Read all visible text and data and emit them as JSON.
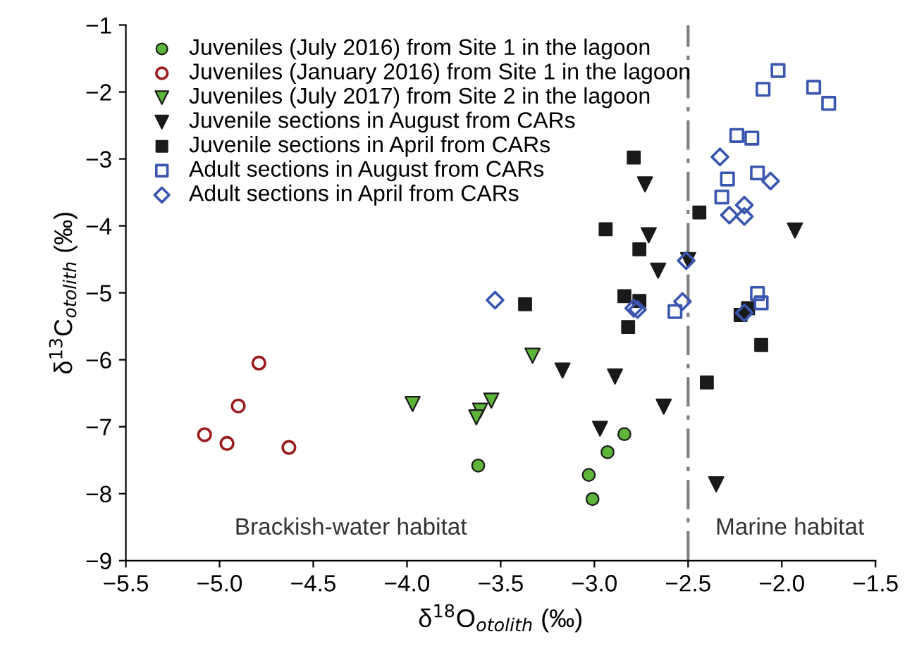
{
  "chart_data": {
    "type": "scatter",
    "xlabel": "δ$^{18}$O$_{otolith}$ (‰)",
    "ylabel": "δ$^{13}$C$_{otolith}$ (‰)",
    "xlim": [
      -5.5,
      -1.5
    ],
    "xticks": [
      {
        "value": -5.5,
        "label": "−5.5"
      },
      {
        "value": -5.0,
        "label": "−5.0"
      },
      {
        "value": -4.5,
        "label": "−4.5"
      },
      {
        "value": -4.0,
        "label": "−4.0"
      },
      {
        "value": -3.5,
        "label": "−3.5"
      },
      {
        "value": -3.0,
        "label": "−3.0"
      },
      {
        "value": -2.5,
        "label": "−2.5"
      },
      {
        "value": -2.0,
        "label": "−2.0"
      },
      {
        "value": -1.5,
        "label": "−1.5"
      }
    ],
    "ylim": [
      -9,
      -1
    ],
    "yticks": [
      {
        "value": -9,
        "label": "−9"
      },
      {
        "value": -8,
        "label": "−8"
      },
      {
        "value": -7,
        "label": "−7"
      },
      {
        "value": -6,
        "label": "−6"
      },
      {
        "value": -5,
        "label": "−5"
      },
      {
        "value": -4,
        "label": "−4"
      },
      {
        "value": -3,
        "label": "−3"
      },
      {
        "value": -2,
        "label": "−2"
      },
      {
        "value": -1,
        "label": "−1"
      }
    ],
    "grid": false,
    "legend": "top left",
    "ref_lines": [
      {
        "axis": "x",
        "value": -2.5,
        "color": "#808080",
        "line_style": "dashdot"
      }
    ],
    "annotations": [
      "Brackish-water habitat",
      "Marine habitat"
    ],
    "series": [
      {
        "name": "Juveniles (July 2016) from Site 1 in the lagoon",
        "color": "#5db53a",
        "marker": "circle",
        "x": [
          -3.62,
          -2.84,
          -2.93,
          -3.03,
          -3.01
        ],
        "values": [
          -7.58,
          -7.11,
          -7.38,
          -7.72,
          -8.08
        ]
      },
      {
        "name": "Juveniles (January 2016) from Site 1 in the lagoon",
        "color": "#9b1c1c",
        "marker": "circle-open",
        "x": [
          -5.08,
          -4.96,
          -4.9,
          -4.79,
          -4.63
        ],
        "values": [
          -7.12,
          -7.25,
          -6.69,
          -6.05,
          -7.31
        ]
      },
      {
        "name": "Juveniles (July 2017) from Site 2 in the lagoon",
        "color": "#5db53a",
        "marker": "triangle_down",
        "x": [
          -3.97,
          -3.55,
          -3.61,
          -3.63,
          -3.33
        ],
        "values": [
          -6.66,
          -6.61,
          -6.76,
          -6.86,
          -5.94
        ]
      },
      {
        "name": "Juvenile sections in August from CARs",
        "color": "#1a1a1a",
        "marker": "triangle_down",
        "x": [
          -2.73,
          -2.71,
          -2.66,
          -2.5,
          -1.93,
          -3.17,
          -2.89,
          -2.63,
          -2.97,
          -2.35
        ],
        "values": [
          -3.38,
          -4.14,
          -4.67,
          -4.51,
          -4.07,
          -6.16,
          -6.25,
          -6.7,
          -7.03,
          -7.86
        ]
      },
      {
        "name": "Juvenile sections in April from CARs",
        "color": "#1a1a1a",
        "marker": "square",
        "x": [
          -2.79,
          -2.44,
          -2.94,
          -2.76,
          -3.37,
          -2.84,
          -2.76,
          -2.82,
          -2.22,
          -2.18,
          -2.11,
          -2.4
        ],
        "values": [
          -2.98,
          -3.8,
          -4.05,
          -4.35,
          -5.17,
          -5.05,
          -5.12,
          -5.51,
          -5.33,
          -5.23,
          -5.78,
          -6.34
        ]
      },
      {
        "name": "Adult sections in August from CARs",
        "color": "#3a56b0",
        "marker": "square-open",
        "x": [
          -2.02,
          -2.1,
          -1.83,
          -1.75,
          -2.24,
          -2.16,
          -2.29,
          -2.13,
          -2.32,
          -2.13,
          -2.11,
          -2.57
        ],
        "values": [
          -1.68,
          -1.96,
          -1.93,
          -2.17,
          -2.65,
          -2.69,
          -3.3,
          -3.21,
          -3.57,
          -5.01,
          -5.15,
          -5.28
        ]
      },
      {
        "name": "Adult sections in April from CARs",
        "color": "#3a56b0",
        "marker": "diamond-open",
        "x": [
          -2.33,
          -2.06,
          -2.2,
          -2.28,
          -2.2,
          -2.51,
          -3.53,
          -2.79,
          -2.77,
          -2.53,
          -2.2
        ],
        "values": [
          -2.97,
          -3.33,
          -3.69,
          -3.84,
          -3.86,
          -4.52,
          -5.11,
          -5.23,
          -5.25,
          -5.13,
          -5.3
        ]
      }
    ]
  }
}
